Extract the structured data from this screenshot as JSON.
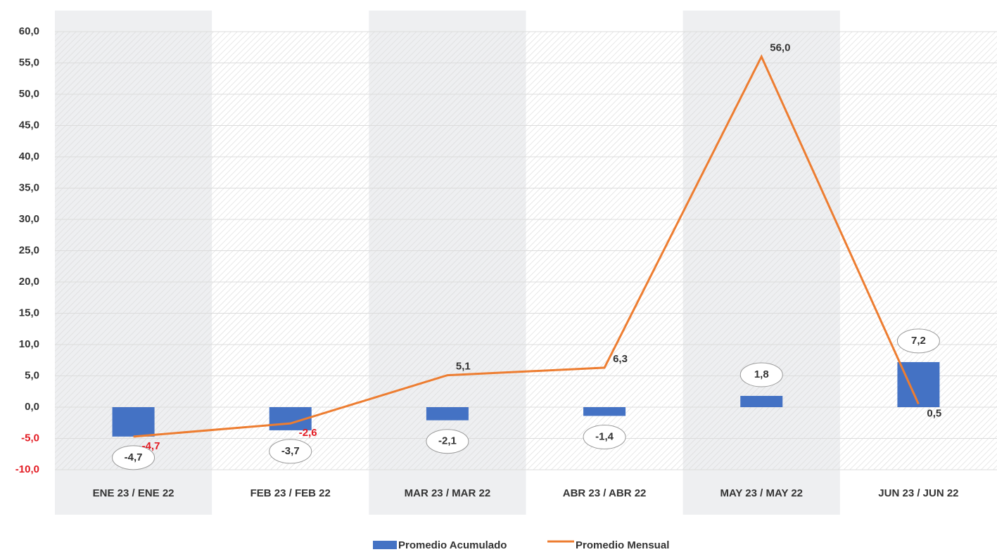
{
  "chart_data": {
    "type": "combo",
    "categories": [
      "ENE 23 / ENE 22",
      "FEB 23 / FEB 22",
      "MAR 23 / MAR 22",
      "ABR 23 / ABR 22",
      "MAY 23 / MAY 22",
      "JUN 23 / JUN 22"
    ],
    "series": [
      {
        "name": "Promedio Acumulado",
        "type": "bar",
        "color": "#4472c4",
        "values": [
          -4.7,
          -3.7,
          -2.1,
          -1.4,
          1.8,
          7.2
        ],
        "value_labels": [
          "-4,7",
          "-3,7",
          "-2,1",
          "-1,4",
          "1,8",
          "7,2"
        ]
      },
      {
        "name": "Promedio Mensual",
        "type": "line",
        "color": "#ed7d31",
        "values": [
          -4.7,
          -2.6,
          5.1,
          6.3,
          56.0,
          0.5
        ],
        "value_labels": [
          "-4,7",
          "-2,6",
          "5,1",
          "6,3",
          "56,0",
          "0,5"
        ]
      }
    ],
    "ylim": [
      -10,
      60
    ],
    "yticks": [
      {
        "value": -10,
        "label": "-10,0"
      },
      {
        "value": -5,
        "label": "-5,0"
      },
      {
        "value": 0,
        "label": "0,0"
      },
      {
        "value": 5,
        "label": "5,0"
      },
      {
        "value": 10,
        "label": "10,0"
      },
      {
        "value": 15,
        "label": "15,0"
      },
      {
        "value": 20,
        "label": "20,0"
      },
      {
        "value": 25,
        "label": "25,0"
      },
      {
        "value": 30,
        "label": "30,0"
      },
      {
        "value": 35,
        "label": "35,0"
      },
      {
        "value": 40,
        "label": "40,0"
      },
      {
        "value": 45,
        "label": "45,0"
      },
      {
        "value": 50,
        "label": "50,0"
      },
      {
        "value": 55,
        "label": "55,0"
      },
      {
        "value": 60,
        "label": "60,0"
      }
    ],
    "grid": true
  }
}
